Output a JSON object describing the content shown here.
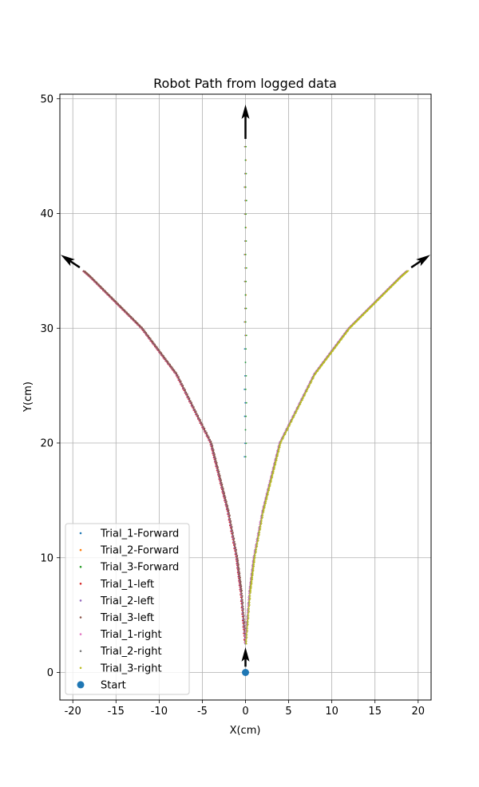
{
  "chart_data": {
    "type": "scatter",
    "title": "Robot Path from logged data",
    "xlabel": "X(cm)",
    "ylabel": "Y(cm)",
    "xlim": [
      -21.5,
      21.5
    ],
    "ylim": [
      -2.4,
      50.4
    ],
    "xticks": [
      -20,
      -15,
      -10,
      -5,
      0,
      5,
      10,
      15,
      20
    ],
    "yticks": [
      0,
      10,
      20,
      30,
      40,
      50
    ],
    "grid": true,
    "legend_position": "lower-left",
    "series": [
      {
        "name": "Trial_1-Forward",
        "color": "#1f77b4",
        "path": "forward",
        "y_start": 18,
        "y_end": 47
      },
      {
        "name": "Trial_2-Forward",
        "color": "#ff7f0e",
        "path": "forward",
        "y_start": 29,
        "y_end": 47
      },
      {
        "name": "Trial_3-Forward",
        "color": "#2ca02c",
        "path": "forward",
        "y_start": 18,
        "y_end": 47
      },
      {
        "name": "Trial_1-left",
        "color": "#d62728",
        "path": "left",
        "y_start": 2.5,
        "y_end": 35
      },
      {
        "name": "Trial_2-left",
        "color": "#9467bd",
        "path": "left",
        "y_start": 2.5,
        "y_end": 35
      },
      {
        "name": "Trial_3-left",
        "color": "#8c564b",
        "path": "left",
        "y_start": 2.5,
        "y_end": 35
      },
      {
        "name": "Trial_1-right",
        "color": "#e377c2",
        "path": "right",
        "y_start": 2.5,
        "y_end": 35
      },
      {
        "name": "Trial_2-right",
        "color": "#7f7f7f",
        "path": "right",
        "y_start": 2.5,
        "y_end": 35
      },
      {
        "name": "Trial_3-right",
        "color": "#bcbd22",
        "path": "right",
        "y_start": 2.5,
        "y_end": 35
      }
    ],
    "curves": {
      "forward": [
        [
          0,
          0
        ],
        [
          0,
          47
        ]
      ],
      "left": [
        [
          0,
          2.5
        ],
        [
          -0.5,
          7
        ],
        [
          -1,
          10
        ],
        [
          -2,
          14
        ],
        [
          -3,
          17
        ],
        [
          -4,
          20
        ],
        [
          -6,
          23
        ],
        [
          -8,
          26
        ],
        [
          -10,
          28
        ],
        [
          -12,
          30
        ],
        [
          -14,
          31.5
        ],
        [
          -16,
          33
        ],
        [
          -18,
          34.5
        ],
        [
          -19.5,
          35.5
        ]
      ],
      "right": [
        [
          0,
          2.5
        ],
        [
          0.5,
          7
        ],
        [
          1,
          10
        ],
        [
          2,
          14
        ],
        [
          3,
          17
        ],
        [
          4,
          20
        ],
        [
          6,
          23
        ],
        [
          8,
          26
        ],
        [
          10,
          28
        ],
        [
          12,
          30
        ],
        [
          14,
          31.5
        ],
        [
          16,
          33
        ],
        [
          18,
          34.5
        ],
        [
          19.5,
          35.5
        ]
      ]
    },
    "arrows": [
      {
        "name": "start",
        "x": 0,
        "y": 0.5,
        "dx": 0,
        "dy": 1.7
      },
      {
        "name": "forward-end",
        "x": 0,
        "y": 46.5,
        "dx": 0,
        "dy": 3.0
      },
      {
        "name": "left-end",
        "x": -19.2,
        "y": 35.3,
        "dx": -2.2,
        "dy": 1.1
      },
      {
        "name": "right-end",
        "x": 19.2,
        "y": 35.3,
        "dx": 2.2,
        "dy": 1.1
      }
    ],
    "start_point": {
      "name": "Start",
      "x": 0,
      "y": 0,
      "color": "#1f77b4"
    }
  }
}
